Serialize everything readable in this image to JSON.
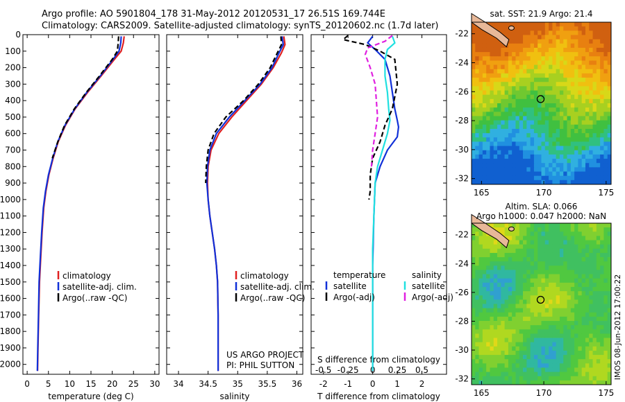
{
  "header": {
    "line1": "Argo profile: AO 5901804_178 31-May-2012 20120531_17 26.51S 169.744E",
    "line2": "Climatology: CARS2009. Satellite-adjusted climatology: synTS_20120602.nc (1.7d later)"
  },
  "stamp": "IMOS 08-Jun-2012 17:00:22",
  "credits": [
    "US ARGO PROJECT",
    "PI: PHIL SUTTON"
  ],
  "colors": {
    "clim": "#e02020",
    "sat": "#1030d8",
    "argo": "#000000",
    "sat_s": "#20e0e0",
    "argo_s": "#e020e0"
  },
  "chart_data": [
    {
      "type": "line",
      "name": "temperature",
      "xlabel": "temperature (deg C)",
      "ylabel": "",
      "xlim": [
        -1,
        31
      ],
      "ylim": [
        2060,
        0
      ],
      "inverted_y": true,
      "xticks": [
        0,
        5,
        10,
        15,
        20,
        25,
        30
      ],
      "yticks": [
        0,
        100,
        200,
        300,
        400,
        500,
        600,
        700,
        800,
        900,
        1000,
        1100,
        1200,
        1300,
        1400,
        1500,
        1600,
        1700,
        1800,
        1900,
        2000
      ],
      "legend": {
        "position": "bottom-left",
        "entries": [
          "climatology",
          "satellite-adj. clim.",
          "Argo(..raw -QC)"
        ]
      },
      "series": [
        {
          "name": "climatology",
          "color": "#e02020",
          "style": "solid",
          "x": [
            22.8,
            22.6,
            22.1,
            20.5,
            17.4,
            14.2,
            11.3,
            9.0,
            7.3,
            6.1,
            5.1,
            4.4,
            3.9,
            3.5,
            3.2,
            2.9,
            2.7,
            2.55,
            2.45
          ],
          "y": [
            10,
            50,
            100,
            150,
            250,
            350,
            450,
            550,
            650,
            750,
            850,
            950,
            1050,
            1200,
            1350,
            1500,
            1700,
            1900,
            2040
          ]
        },
        {
          "name": "satellite-adj. clim.",
          "color": "#1030d8",
          "style": "solid",
          "x": [
            22.1,
            22.0,
            21.6,
            20.2,
            17.2,
            14.0,
            11.2,
            8.9,
            7.2,
            6.0,
            5.0,
            4.3,
            3.8,
            3.4,
            3.1,
            2.8,
            2.65,
            2.5,
            2.4
          ],
          "y": [
            10,
            50,
            100,
            150,
            250,
            350,
            450,
            550,
            650,
            750,
            850,
            950,
            1050,
            1200,
            1350,
            1500,
            1700,
            1900,
            2040
          ]
        },
        {
          "name": "Argo(..raw -QC)",
          "color": "#000000",
          "style": "dashed",
          "x": [
            21.5,
            21.4,
            21.2,
            20.0,
            17.0,
            13.9,
            11.1,
            8.8,
            7.2,
            5.9
          ],
          "y": [
            10,
            50,
            100,
            150,
            250,
            350,
            450,
            550,
            650,
            750
          ]
        }
      ]
    },
    {
      "type": "line",
      "name": "salinity",
      "xlabel": "salinity",
      "ylabel": "",
      "xlim": [
        33.8,
        36.1
      ],
      "ylim": [
        2060,
        0
      ],
      "inverted_y": true,
      "xticks": [
        34,
        34.5,
        35,
        35.5,
        36
      ],
      "legend": {
        "position": "bottom-left",
        "entries": [
          "climatology",
          "satellite-adj. clim.",
          "Argo(..raw -QC)"
        ]
      },
      "series": [
        {
          "name": "climatology",
          "color": "#e02020",
          "style": "solid",
          "x": [
            35.78,
            35.8,
            35.74,
            35.6,
            35.4,
            35.15,
            34.9,
            34.68,
            34.55,
            34.5,
            34.49,
            34.5,
            34.53,
            34.57,
            34.61,
            34.64,
            34.66,
            34.67,
            34.67
          ],
          "y": [
            10,
            60,
            110,
            200,
            300,
            400,
            500,
            600,
            700,
            800,
            900,
            1000,
            1100,
            1200,
            1300,
            1400,
            1500,
            1700,
            2040
          ]
        },
        {
          "name": "satellite-adj. clim.",
          "color": "#1030d8",
          "style": "solid",
          "x": [
            35.75,
            35.77,
            35.7,
            35.58,
            35.38,
            35.12,
            34.86,
            34.64,
            34.53,
            34.49,
            34.48,
            34.5,
            34.53,
            34.57,
            34.61,
            34.64,
            34.66,
            34.67,
            34.67
          ],
          "y": [
            10,
            60,
            110,
            200,
            300,
            400,
            500,
            600,
            700,
            800,
            900,
            1000,
            1100,
            1200,
            1300,
            1400,
            1500,
            1700,
            2040
          ]
        },
        {
          "name": "Argo(..raw -QC)",
          "color": "#000000",
          "style": "dashed",
          "x": [
            35.73,
            35.74,
            35.67,
            35.55,
            35.35,
            35.1,
            34.8,
            34.6,
            34.5,
            34.47,
            34.46
          ],
          "y": [
            10,
            60,
            110,
            200,
            300,
            400,
            500,
            600,
            700,
            800,
            900
          ]
        }
      ]
    },
    {
      "type": "line",
      "name": "difference",
      "xlabel": "T difference from climatology",
      "xlabel_top": "S difference from climatology",
      "xlim": [
        -2.5,
        3
      ],
      "ylim": [
        2060,
        0
      ],
      "inverted_y": true,
      "xticks": [
        -2,
        -1,
        0,
        1,
        2
      ],
      "xticks_top": [
        -0.5,
        -0.25,
        0,
        0.25,
        0.5
      ],
      "legend": {
        "position": "bottom",
        "groups": [
          {
            "heading": "temperature",
            "entries": [
              "satellite",
              "Argo(-adj)"
            ]
          },
          {
            "heading": "salinity",
            "entries": [
              "satellite",
              "Argo(-adj)"
            ]
          }
        ]
      },
      "series": [
        {
          "name": "temperature satellite",
          "color": "#1030d8",
          "style": "solid",
          "x": [
            0.0,
            -0.2,
            0.1,
            0.5,
            0.7,
            0.8,
            0.9,
            1.0,
            1.05,
            1.0,
            0.6,
            0.3,
            0.1,
            0.05,
            0,
            0,
            0
          ],
          "y": [
            10,
            50,
            90,
            150,
            250,
            350,
            450,
            520,
            560,
            620,
            700,
            800,
            900,
            1100,
            1400,
            1700,
            2040
          ]
        },
        {
          "name": "salinity satellite",
          "color": "#20e0e0",
          "style": "solid",
          "x": [
            0.8,
            0.9,
            0.6,
            0.5,
            0.5,
            0.6,
            0.65,
            0.7,
            0.6,
            0.4,
            0.2,
            0.1,
            0.05,
            0,
            0,
            0
          ],
          "y": [
            10,
            50,
            90,
            150,
            250,
            350,
            450,
            520,
            600,
            700,
            800,
            900,
            1100,
            1300,
            1700,
            2040
          ]
        },
        {
          "name": "temperature Argo(-adj)",
          "color": "#000000",
          "style": "dashed",
          "x": [
            -1.0,
            -1.2,
            -0.3,
            0.3,
            0.9,
            1.0,
            0.8,
            0.5,
            0.3,
            0.0,
            -0.1,
            -0.1,
            -0.15
          ],
          "y": [
            5,
            30,
            60,
            100,
            150,
            300,
            450,
            550,
            650,
            750,
            850,
            950,
            1000
          ]
        },
        {
          "name": "salinity Argo(-adj)",
          "color": "#e020e0",
          "style": "dashed",
          "x": [
            0.8,
            0.5,
            -0.2,
            -0.3,
            -0.1,
            0.1,
            0.2,
            0.1,
            0.0,
            -0.05
          ],
          "y": [
            5,
            40,
            80,
            120,
            200,
            300,
            500,
            600,
            700,
            800
          ]
        }
      ]
    },
    {
      "type": "heatmap",
      "name": "sst-map",
      "title": "sat. SST: 21.9 Argo: 21.4",
      "xlim": [
        164.2,
        175.4
      ],
      "ylim": [
        -32.4,
        -21.2
      ],
      "xticks": [
        165,
        170,
        175
      ],
      "yticks": [
        -22,
        -24,
        -26,
        -28,
        -30,
        -32
      ],
      "marker": {
        "lon": 169.744,
        "lat": -26.51
      }
    },
    {
      "type": "heatmap",
      "name": "sla-map",
      "title": "Altim. SLA: 0.066",
      "subtitle": "Argo h1000: 0.047 h2000: NaN",
      "xlim": [
        164.2,
        175.4
      ],
      "ylim": [
        -32.4,
        -21.2
      ],
      "xticks": [
        165,
        170,
        175
      ],
      "yticks": [
        -22,
        -24,
        -26,
        -28,
        -30,
        -32
      ],
      "marker": {
        "lon": 169.744,
        "lat": -26.51
      }
    }
  ]
}
